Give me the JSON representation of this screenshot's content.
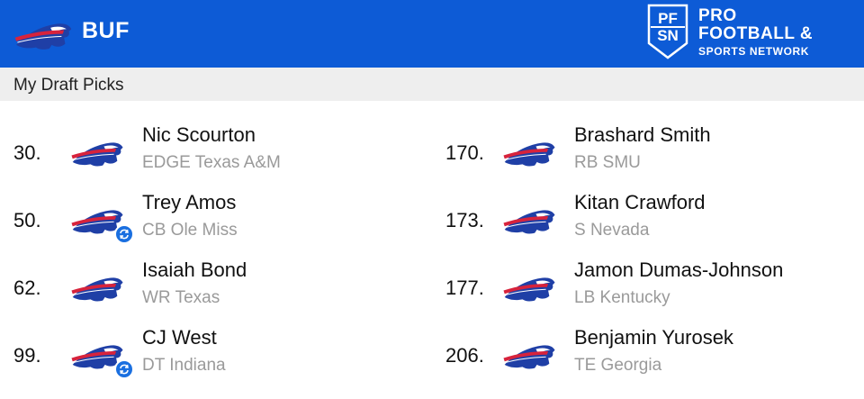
{
  "header": {
    "team_abbr": "BUF",
    "team_logo_icon": "bills-buffalo-logo-icon",
    "brand_logo_icon": "pfsn-logo-icon",
    "brand_badge_text": "PFSN",
    "brand_line1": "PRO",
    "brand_line2": "FOOTBALL &",
    "brand_line3": "SPORTS NETWORK",
    "colors": {
      "bar": "#0d5bd6",
      "text": "#ffffff"
    }
  },
  "subheader": {
    "title": "My Draft Picks"
  },
  "colors": {
    "logo_blue": "#1f3fa6",
    "logo_red": "#d7233c",
    "trade_icon": "#1a6fe0",
    "detail_text": "#9a9a9a"
  },
  "picks": [
    {
      "number": "30.",
      "name": "Nic Scourton",
      "detail": "EDGE Texas A&M",
      "traded": false
    },
    {
      "number": "50.",
      "name": "Trey Amos",
      "detail": "CB Ole Miss",
      "traded": true
    },
    {
      "number": "62.",
      "name": "Isaiah Bond",
      "detail": "WR Texas",
      "traded": false
    },
    {
      "number": "99.",
      "name": "CJ West",
      "detail": "DT Indiana",
      "traded": true
    },
    {
      "number": "170.",
      "name": "Brashard Smith",
      "detail": "RB SMU",
      "traded": false
    },
    {
      "number": "173.",
      "name": "Kitan Crawford",
      "detail": "S Nevada",
      "traded": false
    },
    {
      "number": "177.",
      "name": "Jamon Dumas-Johnson",
      "detail": "LB Kentucky",
      "traded": false
    },
    {
      "number": "206.",
      "name": "Benjamin Yurosek",
      "detail": "TE Georgia",
      "traded": false
    }
  ]
}
